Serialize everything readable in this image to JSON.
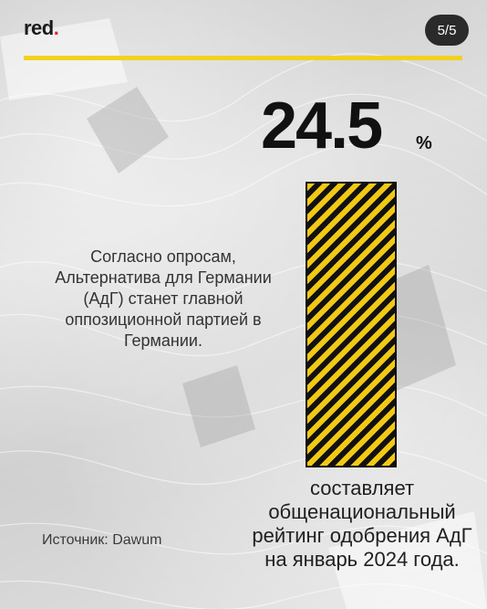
{
  "brand": {
    "name": "red",
    "dot": ".",
    "accent_color": "#e3262b"
  },
  "pagination": {
    "label": "5/5"
  },
  "divider_color": "#f2d21f",
  "stat": {
    "value": "24.5",
    "unit": "%",
    "fill_fraction": 0.245,
    "bar_colors": [
      "#f1c915",
      "#111111"
    ]
  },
  "description": "Согласно опросам, Альтернатива для Германии (АдГ) станет главной оппозиционной партией в Германии.",
  "caption": "составляет общенациональный рейтинг одобрения АдГ на январь 2024 года.",
  "source": "Источник: Dawum"
}
